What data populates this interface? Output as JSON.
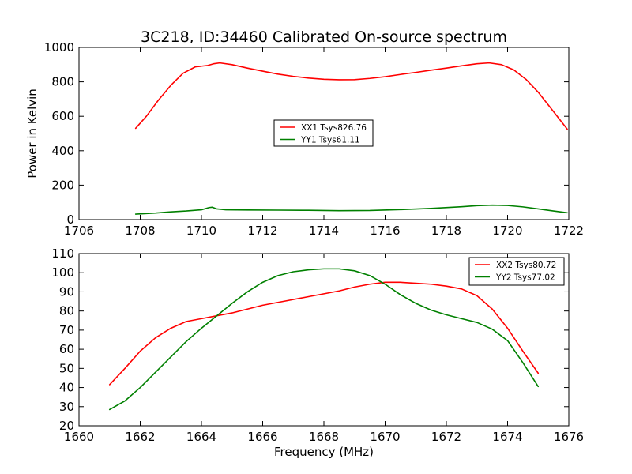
{
  "chart_data": [
    {
      "type": "line",
      "title": "3C218, ID:34460 Calibrated On-source spectrum",
      "xlabel": "",
      "ylabel": "Power in Kelvin",
      "xlim": [
        1706,
        1722
      ],
      "ylim": [
        0,
        1000
      ],
      "xticks": [
        1706,
        1708,
        1710,
        1712,
        1714,
        1716,
        1718,
        1720,
        1722
      ],
      "yticks": [
        0,
        200,
        400,
        600,
        800,
        1000
      ],
      "legend_position": "center",
      "series": [
        {
          "name": "XX1 Tsys826.76",
          "color": "#ff0000",
          "x": [
            1707.85,
            1708.2,
            1708.6,
            1709.0,
            1709.4,
            1709.8,
            1710.2,
            1710.4,
            1710.6,
            1711.0,
            1711.5,
            1712.0,
            1712.5,
            1713.0,
            1713.5,
            1714.0,
            1714.5,
            1715.0,
            1715.5,
            1716.0,
            1716.5,
            1717.0,
            1717.5,
            1718.0,
            1718.5,
            1719.0,
            1719.4,
            1719.8,
            1720.2,
            1720.6,
            1721.0,
            1721.4,
            1721.95
          ],
          "y": [
            530,
            600,
            695,
            780,
            850,
            887,
            895,
            905,
            910,
            900,
            880,
            862,
            845,
            832,
            822,
            815,
            812,
            813,
            820,
            830,
            843,
            855,
            868,
            880,
            893,
            905,
            910,
            900,
            870,
            815,
            740,
            650,
            525
          ]
        },
        {
          "name": "YY1 Tsys61.11",
          "color": "#008000",
          "x": [
            1707.85,
            1708.5,
            1709.0,
            1709.5,
            1710.0,
            1710.25,
            1710.35,
            1710.5,
            1710.8,
            1711.5,
            1712.5,
            1713.5,
            1714.5,
            1715.5,
            1716.5,
            1717.5,
            1718.5,
            1719.0,
            1719.5,
            1720.0,
            1720.5,
            1721.0,
            1721.5,
            1721.95
          ],
          "y": [
            32,
            38,
            45,
            50,
            57,
            70,
            72,
            62,
            57,
            56,
            55,
            54,
            52,
            53,
            58,
            65,
            75,
            81,
            84,
            82,
            74,
            62,
            50,
            40
          ]
        }
      ]
    },
    {
      "type": "line",
      "title": "",
      "xlabel": "Frequency (MHz)",
      "ylabel": "",
      "xlim": [
        1660,
        1676
      ],
      "ylim": [
        20,
        110
      ],
      "xticks": [
        1660,
        1662,
        1664,
        1666,
        1668,
        1670,
        1672,
        1674,
        1676
      ],
      "yticks": [
        20,
        30,
        40,
        50,
        60,
        70,
        80,
        90,
        100,
        110
      ],
      "legend_position": "top-right",
      "series": [
        {
          "name": "XX2 Tsys80.72",
          "color": "#ff0000",
          "x": [
            1661.0,
            1661.5,
            1662.0,
            1662.5,
            1663.0,
            1663.5,
            1664.0,
            1664.5,
            1665.0,
            1665.5,
            1666.0,
            1666.5,
            1667.0,
            1667.5,
            1668.0,
            1668.5,
            1669.0,
            1669.5,
            1670.0,
            1670.5,
            1671.0,
            1671.5,
            1672.0,
            1672.5,
            1673.0,
            1673.5,
            1674.0,
            1674.5,
            1675.0
          ],
          "y": [
            41.5,
            50,
            59,
            66,
            71,
            74.5,
            76,
            77.5,
            79,
            81,
            83,
            84.5,
            86,
            87.5,
            89,
            90.5,
            92.5,
            94,
            95,
            95,
            94.5,
            94,
            93,
            91.5,
            88,
            81,
            71,
            59,
            47.5
          ]
        },
        {
          "name": "YY2 Tsys77.02",
          "color": "#008000",
          "x": [
            1661.0,
            1661.5,
            1662.0,
            1662.5,
            1663.0,
            1663.5,
            1664.0,
            1664.5,
            1665.0,
            1665.5,
            1666.0,
            1666.5,
            1667.0,
            1667.5,
            1668.0,
            1668.5,
            1669.0,
            1669.5,
            1670.0,
            1670.5,
            1671.0,
            1671.5,
            1672.0,
            1672.5,
            1673.0,
            1673.5,
            1674.0,
            1674.5,
            1675.0
          ],
          "y": [
            28.5,
            33,
            40,
            48,
            56,
            64,
            71,
            77.5,
            84,
            90,
            95,
            98.5,
            100.5,
            101.5,
            102,
            102,
            101,
            98.5,
            94,
            88.5,
            84,
            80.5,
            78,
            76,
            74,
            70.5,
            64.5,
            53,
            40.5
          ]
        }
      ]
    }
  ]
}
